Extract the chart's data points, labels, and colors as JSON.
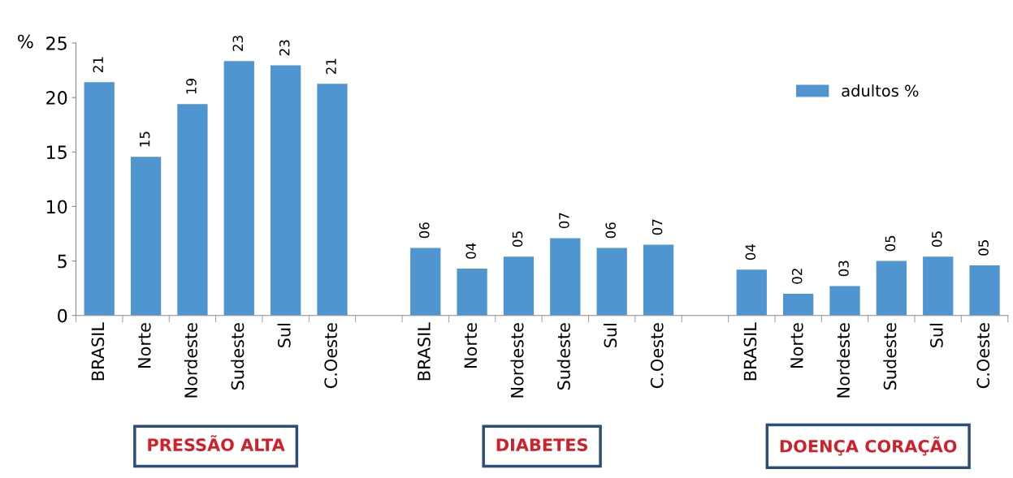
{
  "chart_data": {
    "type": "bar",
    "ylabel": "%",
    "categories": [
      "BRASIL",
      "Norte",
      "Nordeste",
      "Sudeste",
      "Sul",
      "C.Oeste",
      null,
      "BRASIL",
      "Norte",
      "Nordeste",
      "Sudeste",
      "Sul",
      "C.Oeste",
      null,
      "BRASIL",
      "Norte",
      "Nordeste",
      "Sudeste",
      "Sul",
      "C.Oeste"
    ],
    "series": [
      {
        "name": "adultos %",
        "color": "#4f96d0",
        "values": [
          21.4,
          14.55,
          19.4,
          23.35,
          22.95,
          21.25,
          null,
          6.2,
          4.3,
          5.4,
          7.1,
          6.2,
          6.5,
          null,
          4.2,
          2.0,
          2.7,
          5.0,
          5.4,
          4.6
        ],
        "value_labels": [
          "21",
          "15",
          "19",
          "23",
          "23",
          "21",
          null,
          "06",
          "04",
          "05",
          "07",
          "06",
          "07",
          null,
          "04",
          "02",
          "03",
          "05",
          "05",
          "05"
        ]
      }
    ],
    "ylim": [
      0,
      25
    ],
    "yticks": [
      0,
      5,
      10,
      15,
      20,
      25
    ],
    "grid": false,
    "legend": "top right",
    "annotations": [
      "PRESSÃO ALTA",
      "DIABETES",
      "DOENÇA CORAÇÃO"
    ]
  }
}
